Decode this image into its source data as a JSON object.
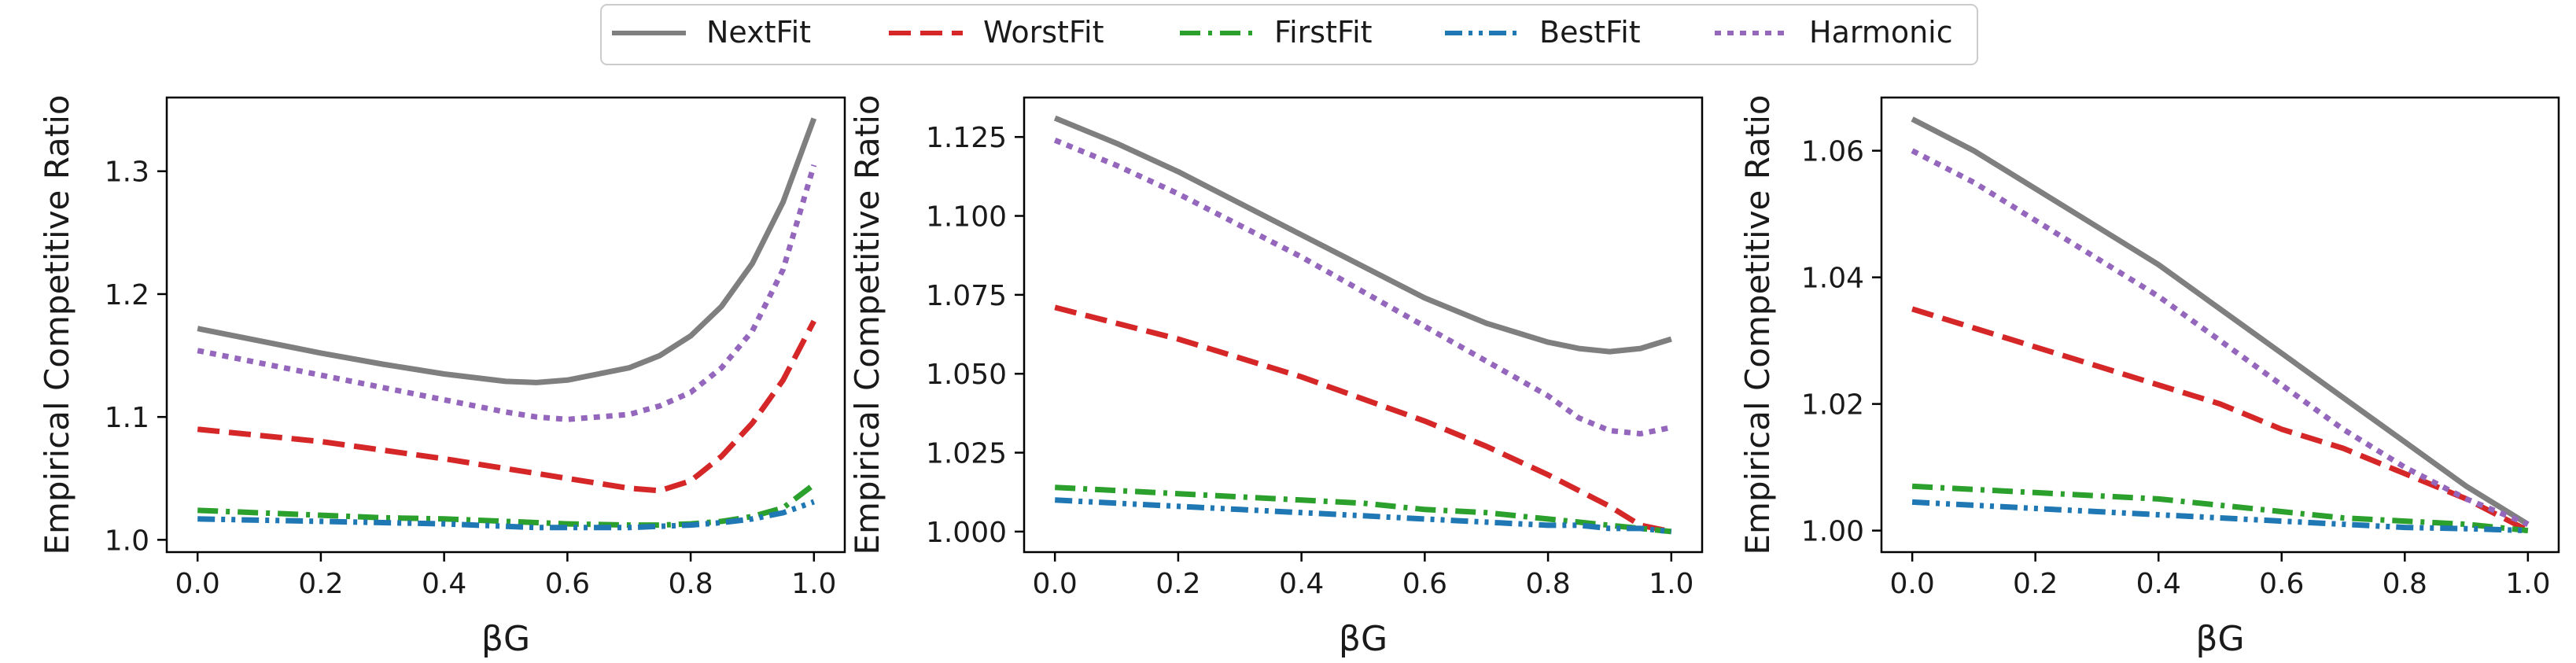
{
  "legend": {
    "position": "top-center",
    "entries": [
      {
        "label": "NextFit",
        "color": "#7f7f7f",
        "dash": "solid"
      },
      {
        "label": "WorstFit",
        "color": "#d62728",
        "dash": "dashed"
      },
      {
        "label": "FirstFit",
        "color": "#2ca02c",
        "dash": "dashdot"
      },
      {
        "label": "BestFit",
        "color": "#1f77b4",
        "dash": "dashdotdot"
      },
      {
        "label": "Harmonic",
        "color": "#9467bd",
        "dash": "dotted"
      }
    ]
  },
  "chart_data": [
    {
      "type": "line",
      "xlabel": "βG",
      "ylabel": "Empirical Competitive Ratio",
      "xlim": [
        -0.05,
        1.05
      ],
      "ylim": [
        0.99,
        1.36
      ],
      "xticks": [
        "0.0",
        "0.2",
        "0.4",
        "0.6",
        "0.8",
        "1.0"
      ],
      "yticks": [
        "1.0",
        "1.1",
        "1.2",
        "1.3"
      ],
      "grid": false,
      "x": [
        0.0,
        0.1,
        0.2,
        0.3,
        0.4,
        0.5,
        0.55,
        0.6,
        0.7,
        0.75,
        0.8,
        0.85,
        0.9,
        0.95,
        1.0
      ],
      "series": [
        {
          "name": "NextFit",
          "values": [
            1.172,
            1.162,
            1.152,
            1.143,
            1.135,
            1.129,
            1.128,
            1.13,
            1.14,
            1.15,
            1.166,
            1.19,
            1.225,
            1.275,
            1.343
          ]
        },
        {
          "name": "WorstFit",
          "values": [
            1.09,
            1.085,
            1.08,
            1.073,
            1.066,
            1.058,
            1.054,
            1.05,
            1.042,
            1.04,
            1.048,
            1.068,
            1.095,
            1.13,
            1.178
          ]
        },
        {
          "name": "FirstFit",
          "values": [
            1.024,
            1.022,
            1.02,
            1.018,
            1.017,
            1.015,
            1.014,
            1.013,
            1.012,
            1.012,
            1.013,
            1.015,
            1.019,
            1.026,
            1.045
          ]
        },
        {
          "name": "BestFit",
          "values": [
            1.017,
            1.016,
            1.015,
            1.014,
            1.013,
            1.011,
            1.01,
            1.01,
            1.01,
            1.011,
            1.012,
            1.014,
            1.017,
            1.022,
            1.031
          ]
        },
        {
          "name": "Harmonic",
          "values": [
            1.154,
            1.144,
            1.134,
            1.124,
            1.114,
            1.104,
            1.1,
            1.098,
            1.102,
            1.109,
            1.12,
            1.14,
            1.17,
            1.22,
            1.305
          ]
        }
      ]
    },
    {
      "type": "line",
      "xlabel": "βG",
      "ylabel": "Empirical Competitive Ratio",
      "xlim": [
        -0.05,
        1.05
      ],
      "ylim": [
        0.9935,
        1.1375
      ],
      "xticks": [
        "0.0",
        "0.2",
        "0.4",
        "0.6",
        "0.8",
        "1.0"
      ],
      "yticks": [
        "1.000",
        "1.025",
        "1.050",
        "1.075",
        "1.100",
        "1.125"
      ],
      "grid": false,
      "x": [
        0.0,
        0.1,
        0.2,
        0.3,
        0.4,
        0.5,
        0.6,
        0.7,
        0.8,
        0.85,
        0.9,
        0.95,
        1.0
      ],
      "series": [
        {
          "name": "NextFit",
          "values": [
            1.131,
            1.123,
            1.114,
            1.104,
            1.094,
            1.084,
            1.074,
            1.066,
            1.06,
            1.058,
            1.057,
            1.058,
            1.061
          ]
        },
        {
          "name": "WorstFit",
          "values": [
            1.071,
            1.066,
            1.061,
            1.055,
            1.049,
            1.042,
            1.035,
            1.027,
            1.018,
            1.013,
            1.008,
            1.002,
            1.0
          ]
        },
        {
          "name": "FirstFit",
          "values": [
            1.014,
            1.013,
            1.012,
            1.011,
            1.01,
            1.009,
            1.007,
            1.006,
            1.004,
            1.003,
            1.002,
            1.001,
            1.0
          ]
        },
        {
          "name": "BestFit",
          "values": [
            1.01,
            1.009,
            1.008,
            1.007,
            1.006,
            1.005,
            1.004,
            1.003,
            1.002,
            1.002,
            1.001,
            1.001,
            1.0
          ]
        },
        {
          "name": "Harmonic",
          "values": [
            1.124,
            1.116,
            1.107,
            1.097,
            1.087,
            1.076,
            1.065,
            1.054,
            1.043,
            1.036,
            1.032,
            1.031,
            1.033
          ]
        }
      ]
    },
    {
      "type": "line",
      "xlabel": "βG",
      "ylabel": "Empirical Competitive Ratio",
      "xlim": [
        -0.05,
        1.05
      ],
      "ylim": [
        0.9966,
        1.0684
      ],
      "xticks": [
        "0.0",
        "0.2",
        "0.4",
        "0.6",
        "0.8",
        "1.0"
      ],
      "yticks": [
        "1.00",
        "1.02",
        "1.04",
        "1.06"
      ],
      "grid": false,
      "x": [
        0.0,
        0.1,
        0.2,
        0.3,
        0.4,
        0.5,
        0.6,
        0.7,
        0.8,
        0.9,
        1.0
      ],
      "series": [
        {
          "name": "NextFit",
          "values": [
            1.065,
            1.06,
            1.054,
            1.048,
            1.042,
            1.035,
            1.028,
            1.021,
            1.014,
            1.007,
            1.001
          ]
        },
        {
          "name": "WorstFit",
          "values": [
            1.035,
            1.032,
            1.029,
            1.026,
            1.023,
            1.02,
            1.016,
            1.013,
            1.009,
            1.005,
            1.0
          ]
        },
        {
          "name": "FirstFit",
          "values": [
            1.007,
            1.0065,
            1.006,
            1.0055,
            1.005,
            1.004,
            1.003,
            1.002,
            1.0015,
            1.001,
            1.0
          ]
        },
        {
          "name": "BestFit",
          "values": [
            1.0045,
            1.004,
            1.0035,
            1.003,
            1.0025,
            1.002,
            1.0015,
            1.001,
            1.0005,
            1.0003,
            1.0
          ]
        },
        {
          "name": "Harmonic",
          "values": [
            1.06,
            1.055,
            1.049,
            1.043,
            1.037,
            1.03,
            1.023,
            1.016,
            1.01,
            1.005,
            1.001
          ]
        }
      ]
    }
  ]
}
